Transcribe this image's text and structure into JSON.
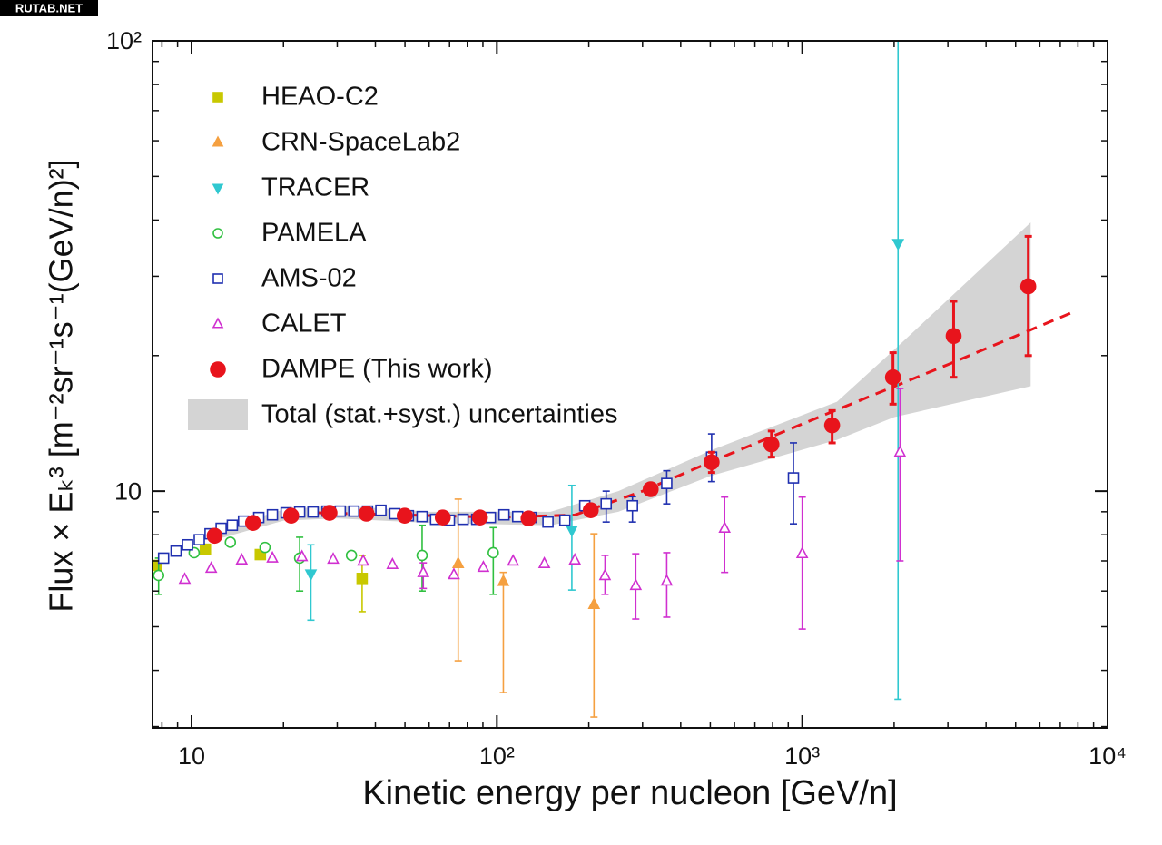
{
  "watermark": "RUTAB.NET",
  "chart_data": {
    "type": "scatter",
    "xlabel": "Kinetic energy per nucleon [GeV/n]",
    "ylabel": "Flux × Eₖ³ [m⁻²sr⁻¹s⁻¹(GeV/n)²]",
    "xlog": true,
    "ylog": true,
    "xlim": [
      7.45,
      10000
    ],
    "ylim": [
      2.98,
      100
    ],
    "xticks": [
      10,
      {
        "value": 100,
        "label": "10²"
      },
      {
        "value": 1000,
        "label": "10³"
      },
      {
        "value": 10000,
        "label": "10⁴"
      }
    ],
    "yticks": [
      10,
      {
        "value": 100,
        "label": "10²"
      }
    ],
    "minor_ticks": true,
    "legend": "upper left",
    "series": [
      {
        "name": "HEAO-C2",
        "color": "#c8c800",
        "marker": "square",
        "filled": true,
        "x": [
          7.66,
          11.1,
          16.8,
          36.2
        ],
        "values": [
          6.84,
          7.43,
          7.23,
          6.4
        ],
        "lower": [
          null,
          null,
          null,
          5.4
        ],
        "upper": [
          null,
          null,
          null,
          7.2
        ]
      },
      {
        "name": "CRN-SpaceLab2",
        "color": "#f5a040",
        "marker": "triangle-up",
        "filled": true,
        "x": [
          74.7,
          105,
          208
        ],
        "values": [
          6.9,
          6.3,
          5.6
        ],
        "lower": [
          4.2,
          3.57,
          3.15
        ],
        "upper": [
          9.6,
          6.6,
          8.04
        ]
      },
      {
        "name": "TRACER",
        "color": "#30c8d0",
        "marker": "triangle-down",
        "filled": true,
        "x": [
          24.6,
          176,
          2060
        ],
        "values": [
          6.55,
          8.2,
          35.5
        ],
        "lower": [
          5.17,
          6.03,
          3.45
        ],
        "upper": [
          7.6,
          10.3,
          100
        ]
      },
      {
        "name": "PAMELA",
        "color": "#30c040",
        "marker": "circle",
        "filled": false,
        "x": [
          7.8,
          10.2,
          13.4,
          17.4,
          22.6,
          33.4,
          56.9,
          97.3
        ],
        "values": [
          6.5,
          7.3,
          7.7,
          7.5,
          7.1,
          7.2,
          7.2,
          7.3
        ],
        "lower": [
          5.9,
          null,
          null,
          null,
          6.0,
          null,
          6.0,
          5.9
        ],
        "upper": [
          7.1,
          null,
          null,
          null,
          7.9,
          null,
          8.4,
          8.3
        ]
      },
      {
        "name": "AMS-02",
        "color": "#2030b0",
        "marker": "square",
        "filled": false,
        "x": [
          8.1,
          8.9,
          9.7,
          10.6,
          11.5,
          12.5,
          13.6,
          14.8,
          16.6,
          18.4,
          20.4,
          22.6,
          25.0,
          27.8,
          30.7,
          34.0,
          37.7,
          41.7,
          46.3,
          51.3,
          56.9,
          63.0,
          69.9,
          77.5,
          85.9,
          95.2,
          105.5,
          117,
          129.5,
          147,
          167,
          194,
          228,
          278,
          360,
          505,
          936
        ],
        "values": [
          7.1,
          7.36,
          7.6,
          7.8,
          8.04,
          8.27,
          8.4,
          8.58,
          8.74,
          8.86,
          8.95,
          8.99,
          8.99,
          9.03,
          9.03,
          9.03,
          9.03,
          9.07,
          8.91,
          8.82,
          8.78,
          8.66,
          8.62,
          8.66,
          8.66,
          8.74,
          8.86,
          8.78,
          8.74,
          8.54,
          8.62,
          9.28,
          9.37,
          9.28,
          10.4,
          11.9,
          10.7
        ],
        "lower": [
          null,
          null,
          null,
          null,
          null,
          null,
          null,
          null,
          null,
          null,
          null,
          null,
          null,
          null,
          null,
          null,
          null,
          null,
          null,
          null,
          null,
          null,
          null,
          null,
          null,
          null,
          null,
          null,
          null,
          null,
          null,
          null,
          8.54,
          8.54,
          9.37,
          10.5,
          8.46
        ],
        "upper": [
          null,
          null,
          null,
          null,
          null,
          null,
          null,
          null,
          null,
          null,
          null,
          null,
          null,
          null,
          null,
          null,
          null,
          null,
          null,
          null,
          null,
          null,
          null,
          null,
          null,
          null,
          null,
          null,
          null,
          null,
          null,
          null,
          10.0,
          9.72,
          11.1,
          13.4,
          12.8
        ]
      },
      {
        "name": "CALET",
        "color": "#d030d0",
        "marker": "triangle-up",
        "filled": false,
        "x": [
          9.5,
          11.6,
          14.6,
          18.4,
          23.0,
          29.1,
          36.5,
          45.5,
          57.4,
          72.3,
          90.3,
          113,
          143,
          180,
          226,
          285,
          360,
          557,
          1000,
          2090
        ],
        "values": [
          6.37,
          6.74,
          7.03,
          7.1,
          7.15,
          7.06,
          6.99,
          6.87,
          6.59,
          6.52,
          6.77,
          6.99,
          6.9,
          7.03,
          6.49,
          6.17,
          6.31,
          8.27,
          7.26,
          12.2
        ],
        "lower": [
          null,
          null,
          null,
          null,
          null,
          null,
          null,
          null,
          6.08,
          null,
          null,
          null,
          null,
          null,
          5.9,
          5.2,
          5.25,
          6.6,
          4.94,
          7.0
        ],
        "upper": [
          null,
          null,
          null,
          null,
          null,
          null,
          null,
          null,
          6.93,
          null,
          null,
          null,
          null,
          null,
          7.2,
          7.26,
          7.3,
          9.7,
          9.7,
          16.9
        ]
      },
      {
        "name": "DAMPE (This work)",
        "color": "#e8141c",
        "marker": "circle",
        "filled": true,
        "big": true,
        "x": [
          11.9,
          15.9,
          21.2,
          28.3,
          37.4,
          49.9,
          66.5,
          88,
          127,
          203,
          319,
          505,
          793,
          1253,
          1983,
          3133,
          5500
        ],
        "values": [
          7.96,
          8.5,
          8.82,
          8.95,
          8.91,
          8.82,
          8.74,
          8.74,
          8.7,
          9.07,
          10.1,
          11.6,
          12.7,
          14.0,
          17.9,
          22.1,
          28.5
        ],
        "lower": [
          null,
          null,
          null,
          null,
          null,
          null,
          null,
          null,
          null,
          null,
          null,
          11.0,
          11.9,
          12.8,
          15.6,
          17.9,
          20.0
        ],
        "upper": [
          null,
          null,
          null,
          null,
          null,
          null,
          null,
          null,
          null,
          null,
          null,
          12.2,
          13.6,
          15.1,
          20.3,
          26.4,
          36.8
        ]
      }
    ],
    "band": {
      "name": "Total (stat.+syst.) uncertainties",
      "color": "#d4d4d4",
      "x": [
        12,
        20,
        30,
        60,
        150,
        250,
        500,
        1300,
        2000,
        5600
      ],
      "lower": [
        7.8,
        8.6,
        8.7,
        8.5,
        8.4,
        9.0,
        10.8,
        13.0,
        14.6,
        17.1
      ],
      "upper": [
        8.2,
        9.1,
        9.3,
        9.0,
        9.0,
        10.0,
        12.3,
        15.8,
        20.6,
        39.5
      ]
    },
    "fit": {
      "color": "#e8141c",
      "style": "dashed",
      "x": [
        26,
        100,
        180,
        300,
        500,
        1000,
        3000,
        7840
      ],
      "values": [
        8.95,
        8.75,
        8.85,
        10.0,
        11.6,
        14.1,
        19.1,
        25.1
      ]
    }
  }
}
